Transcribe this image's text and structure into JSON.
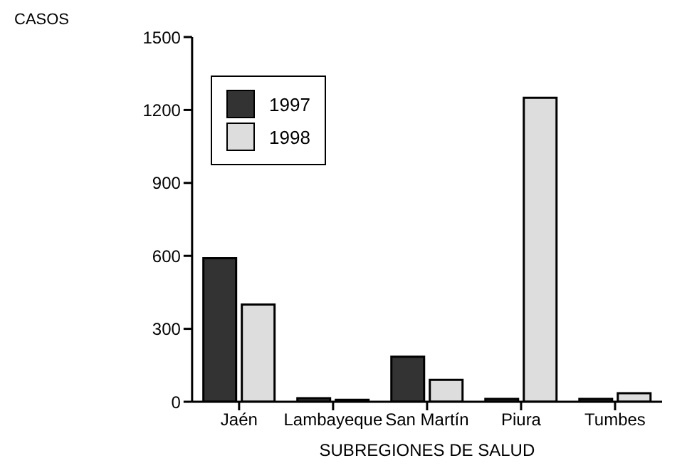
{
  "chart_data": {
    "type": "bar",
    "ylabel": "CASOS",
    "xlabel": "SUBREGIONES DE SALUD",
    "categories": [
      "Jaén",
      "Lambayeque",
      "San Martín",
      "Piura",
      "Tumbes"
    ],
    "series": [
      {
        "name": "1997",
        "color": "#333333",
        "values": [
          590,
          15,
          185,
          12,
          12
        ]
      },
      {
        "name": "1998",
        "color": "#dddddd",
        "values": [
          400,
          8,
          90,
          1250,
          35
        ]
      }
    ],
    "ylim": [
      0,
      1500
    ],
    "yticks": [
      0,
      300,
      600,
      900,
      1200,
      1500
    ],
    "grid": false,
    "legend": "top left"
  }
}
